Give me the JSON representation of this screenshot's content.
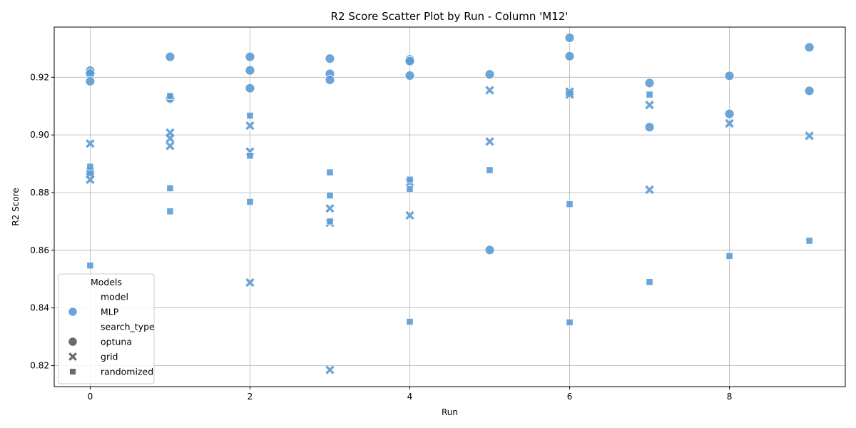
{
  "chart_data": {
    "type": "scatter",
    "title": "R2 Score Scatter Plot by Run - Column 'M12'",
    "xlabel": "Run",
    "ylabel": "R2 Score",
    "xlim": [
      -0.45,
      9.45
    ],
    "ylim": [
      0.8127,
      0.9374
    ],
    "xticks": [
      0,
      2,
      4,
      6,
      8
    ],
    "yticks": [
      0.82,
      0.84,
      0.86,
      0.88,
      0.9,
      0.92
    ],
    "grid": true,
    "color": "#5b9bd5",
    "legend": {
      "title": "Models",
      "placement": "lower-left",
      "entries": [
        {
          "label": "model",
          "kind": "header"
        },
        {
          "label": "MLP",
          "kind": "color"
        },
        {
          "label": "search_type",
          "kind": "header"
        },
        {
          "label": "optuna",
          "kind": "marker",
          "marker": "circle"
        },
        {
          "label": "grid",
          "kind": "marker",
          "marker": "x"
        },
        {
          "label": "randomized",
          "kind": "marker",
          "marker": "square"
        }
      ]
    },
    "series": [
      {
        "name": "optuna",
        "marker": "circle",
        "points": [
          [
            0,
            0.9223
          ],
          [
            0,
            0.9213
          ],
          [
            0,
            0.9186
          ],
          [
            1,
            0.9271
          ],
          [
            1,
            0.9124
          ],
          [
            1,
            0.9127
          ],
          [
            2,
            0.9271
          ],
          [
            2,
            0.9224
          ],
          [
            2,
            0.9162
          ],
          [
            3,
            0.9265
          ],
          [
            3,
            0.9212
          ],
          [
            3,
            0.9191
          ],
          [
            4,
            0.9262
          ],
          [
            4,
            0.9256
          ],
          [
            4,
            0.9206
          ],
          [
            5,
            0.921
          ],
          [
            5,
            0.8601
          ],
          [
            6,
            0.9337
          ],
          [
            6,
            0.9273
          ],
          [
            7,
            0.918
          ],
          [
            7,
            0.9027
          ],
          [
            8,
            0.9205
          ],
          [
            8,
            0.9073
          ],
          [
            9,
            0.9304
          ],
          [
            9,
            0.9153
          ]
        ]
      },
      {
        "name": "grid",
        "marker": "x",
        "points": [
          [
            0,
            0.897
          ],
          [
            0,
            0.8875
          ],
          [
            0,
            0.8865
          ],
          [
            0,
            0.8845
          ],
          [
            1,
            0.9008
          ],
          [
            1,
            0.8988
          ],
          [
            1,
            0.8962
          ],
          [
            2,
            0.9032
          ],
          [
            2,
            0.8942
          ],
          [
            2,
            0.8488
          ],
          [
            3,
            0.8745
          ],
          [
            3,
            0.8695
          ],
          [
            3,
            0.8185
          ],
          [
            4,
            0.8835
          ],
          [
            4,
            0.8721
          ],
          [
            5,
            0.9155
          ],
          [
            5,
            0.8977
          ],
          [
            6,
            0.915
          ],
          [
            6,
            0.914
          ],
          [
            7,
            0.9104
          ],
          [
            7,
            0.881
          ],
          [
            8,
            0.904
          ],
          [
            9,
            0.8997
          ]
        ]
      },
      {
        "name": "randomized",
        "marker": "square",
        "points": [
          [
            0,
            0.889
          ],
          [
            0,
            0.8547
          ],
          [
            1,
            0.9135
          ],
          [
            1,
            0.8815
          ],
          [
            1,
            0.8735
          ],
          [
            2,
            0.9067
          ],
          [
            2,
            0.8928
          ],
          [
            2,
            0.8768
          ],
          [
            3,
            0.887
          ],
          [
            3,
            0.879
          ],
          [
            3,
            0.87
          ],
          [
            4,
            0.8845
          ],
          [
            4,
            0.8812
          ],
          [
            4,
            0.8352
          ],
          [
            5,
            0.8878
          ],
          [
            6,
            0.876
          ],
          [
            6,
            0.835
          ],
          [
            7,
            0.914
          ],
          [
            7,
            0.849
          ],
          [
            8,
            0.858
          ],
          [
            9,
            0.8633
          ]
        ]
      }
    ]
  }
}
